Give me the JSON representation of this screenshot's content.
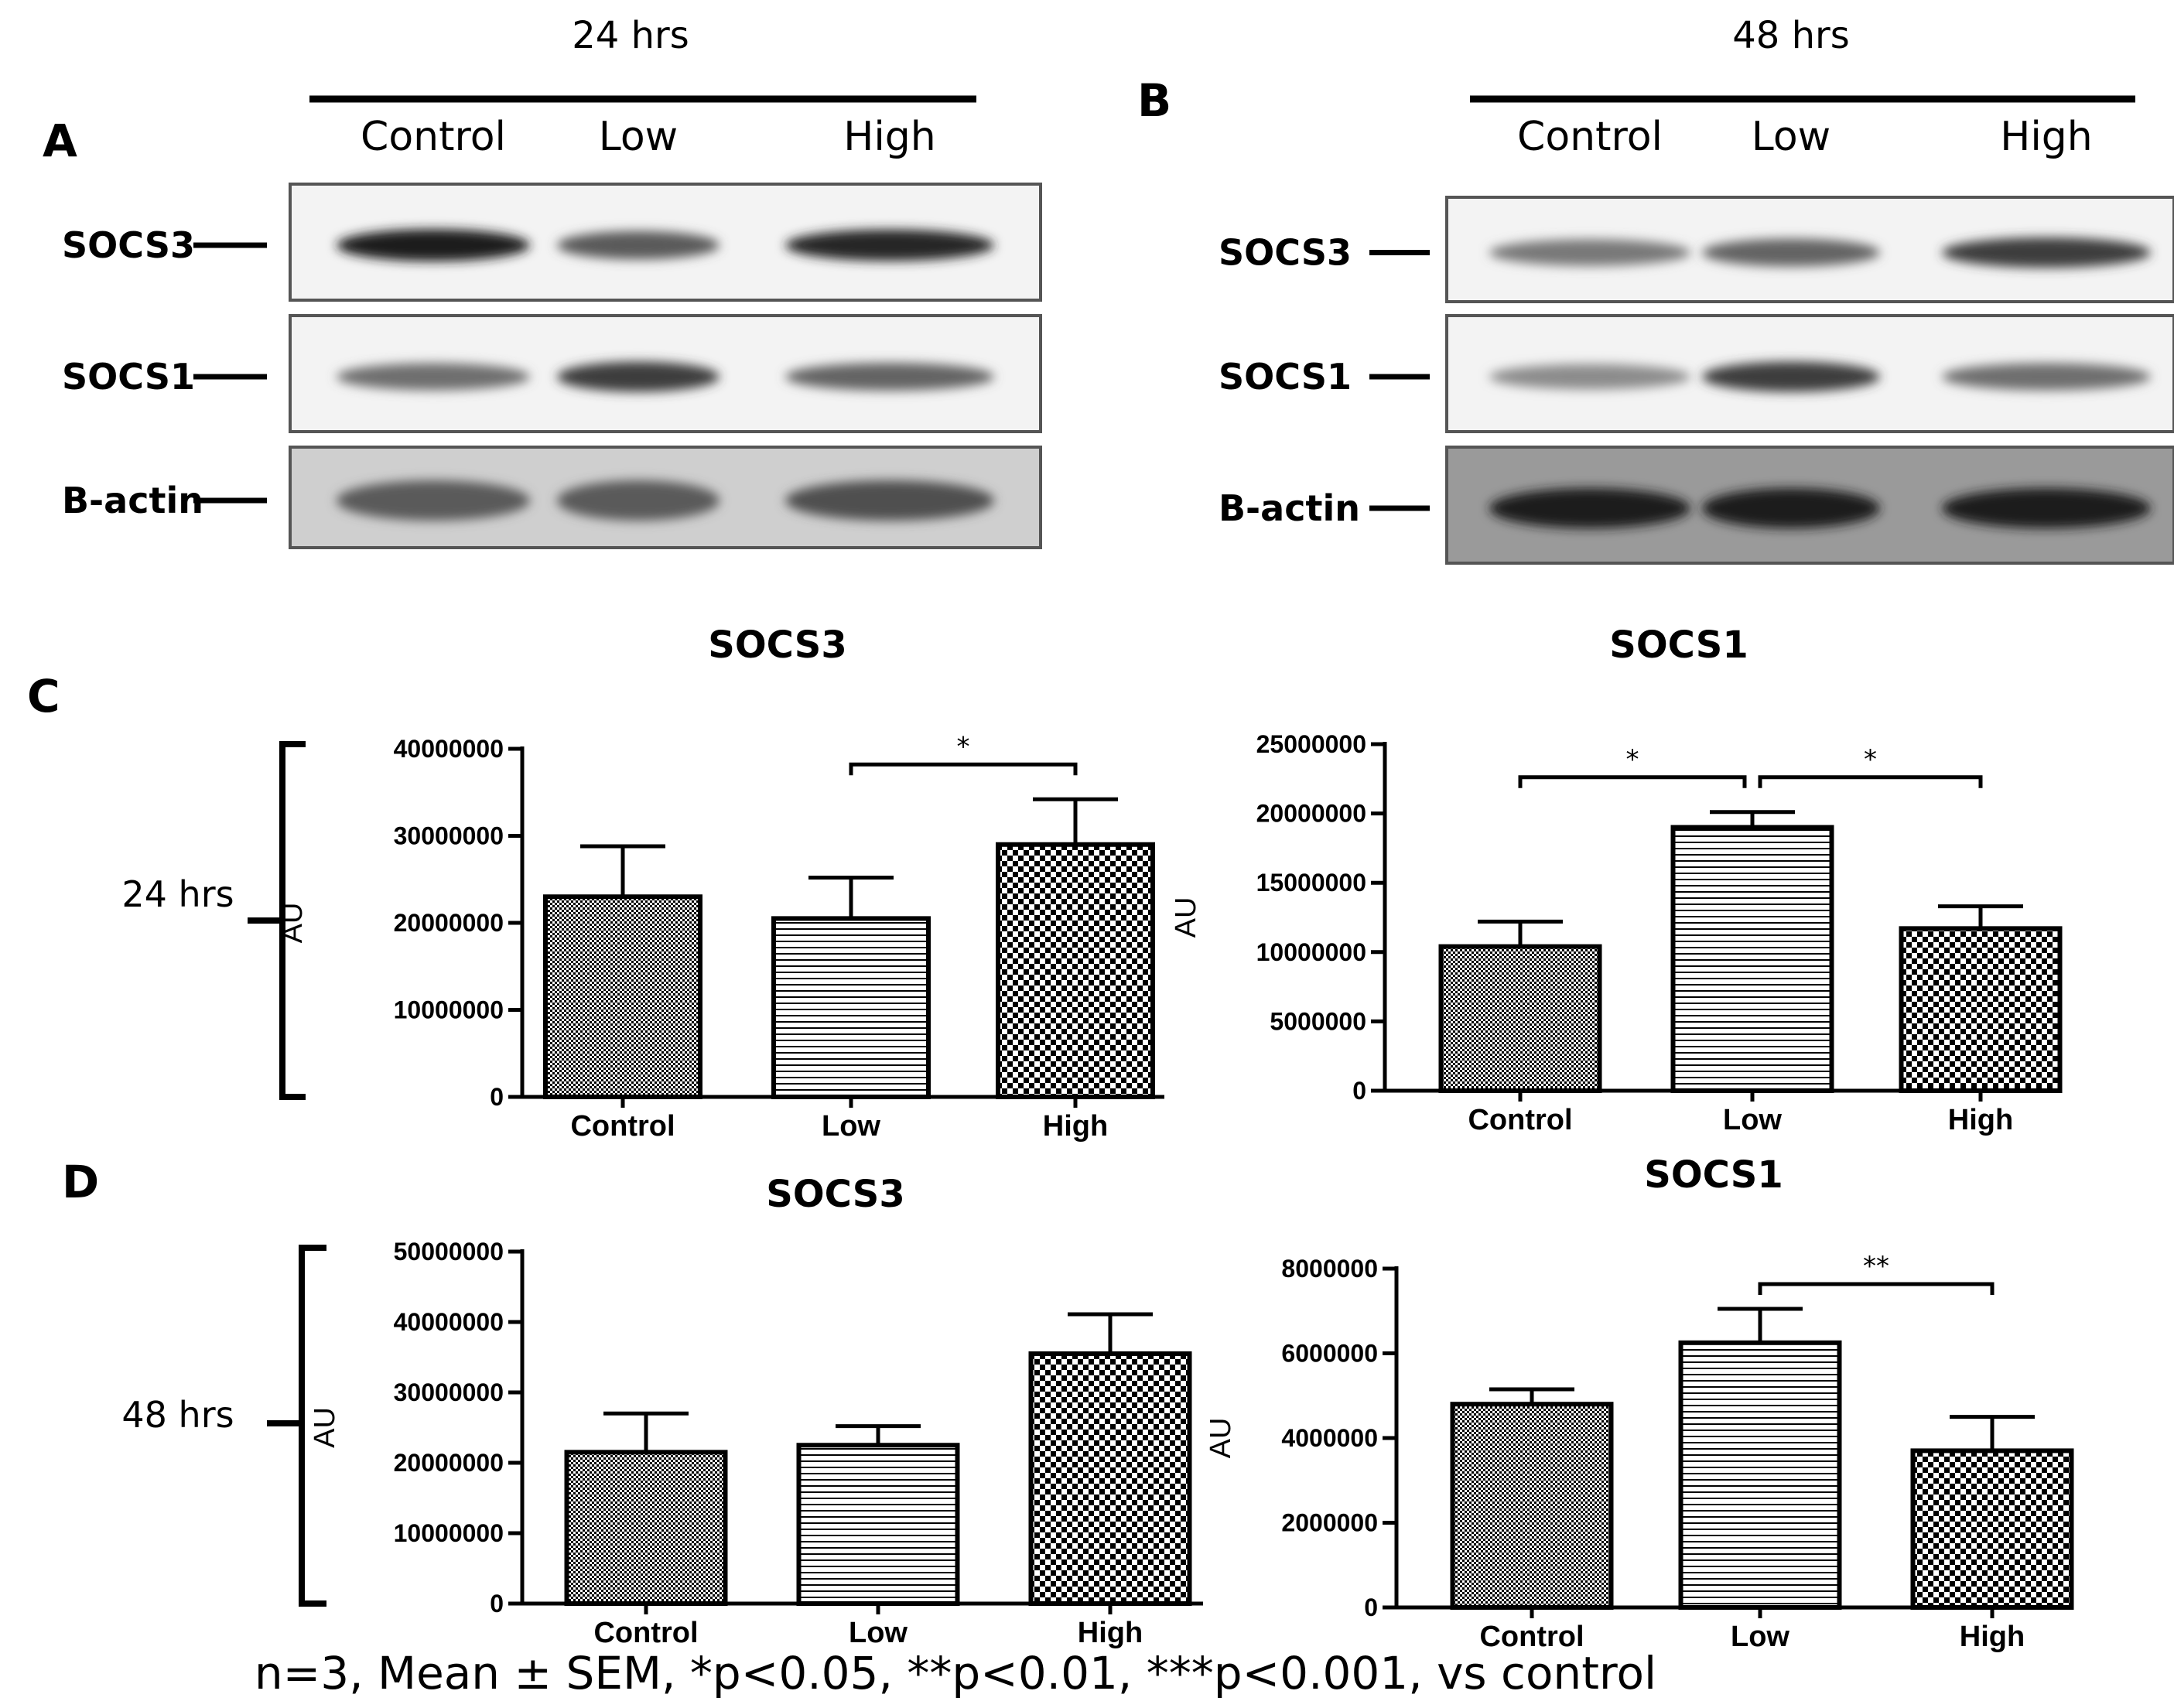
{
  "blots": {
    "time_labels": [
      "24 hrs",
      "48 hrs"
    ],
    "panel_A": {
      "letter": "A",
      "time": "24 hrs",
      "lanes": [
        "Control",
        "Low",
        "High"
      ],
      "rows": [
        {
          "label": "SOCS3",
          "intensity": [
            0.85,
            0.55,
            0.8
          ]
        },
        {
          "label": "SOCS1",
          "intensity": [
            0.45,
            0.7,
            0.5
          ]
        },
        {
          "label": "B-actin",
          "intensity": [
            0.55,
            0.55,
            0.6
          ]
        }
      ]
    },
    "panel_B": {
      "letter": "B",
      "time": "48 hrs",
      "lanes": [
        "Control",
        "Low",
        "High"
      ],
      "rows": [
        {
          "label": "SOCS3",
          "intensity": [
            0.4,
            0.5,
            0.7
          ]
        },
        {
          "label": "SOCS1",
          "intensity": [
            0.3,
            0.7,
            0.45
          ]
        },
        {
          "label": "B-actin",
          "intensity": [
            0.85,
            0.85,
            0.85
          ]
        }
      ]
    }
  },
  "panel_letters": {
    "C": "C",
    "D": "D"
  },
  "row_labels": {
    "C": "24 hrs",
    "D": "48 hrs"
  },
  "footnote": "n=3,  Mean ± SEM, *p<0.05, **p<0.01, ***p<0.001, vs control",
  "chart_data": [
    {
      "panel": "C",
      "type": "bar",
      "title": "SOCS3",
      "ylabel": "AU",
      "categories": [
        "Control",
        "Low",
        "High"
      ],
      "values": [
        23000000,
        20500000,
        29000000
      ],
      "errors": [
        5800000,
        4700000,
        5200000
      ],
      "ylim": [
        0,
        40000000
      ],
      "yticks": [
        0,
        10000000,
        20000000,
        30000000,
        40000000
      ],
      "significance": [
        {
          "from": 1,
          "to": 2,
          "label": "*"
        }
      ]
    },
    {
      "panel": "C",
      "type": "bar",
      "title": "SOCS1",
      "ylabel": "AU",
      "categories": [
        "Control",
        "Low",
        "High"
      ],
      "values": [
        10400000,
        19000000,
        11700000
      ],
      "errors": [
        1800000,
        1100000,
        1600000
      ],
      "ylim": [
        0,
        25000000
      ],
      "yticks": [
        0,
        5000000,
        10000000,
        15000000,
        20000000,
        25000000
      ],
      "significance": [
        {
          "from": 0,
          "to": 1,
          "label": "*"
        },
        {
          "from": 1,
          "to": 2,
          "label": "*"
        }
      ]
    },
    {
      "panel": "D",
      "type": "bar",
      "title": "SOCS3",
      "ylabel": "AU",
      "categories": [
        "Control",
        "Low",
        "High"
      ],
      "values": [
        21500000,
        22500000,
        35500000
      ],
      "errors": [
        5500000,
        2700000,
        5600000
      ],
      "ylim": [
        0,
        50000000
      ],
      "yticks": [
        0,
        10000000,
        20000000,
        30000000,
        40000000,
        50000000
      ],
      "significance": []
    },
    {
      "panel": "D",
      "type": "bar",
      "title": "SOCS1",
      "ylabel": "AU",
      "categories": [
        "Control",
        "Low",
        "High"
      ],
      "values": [
        4800000,
        6250000,
        3700000
      ],
      "errors": [
        350000,
        800000,
        800000
      ],
      "ylim": [
        0,
        8000000
      ],
      "yticks": [
        0,
        2000000,
        4000000,
        6000000,
        8000000
      ],
      "significance": [
        {
          "from": 1,
          "to": 2,
          "label": "**"
        }
      ]
    }
  ]
}
